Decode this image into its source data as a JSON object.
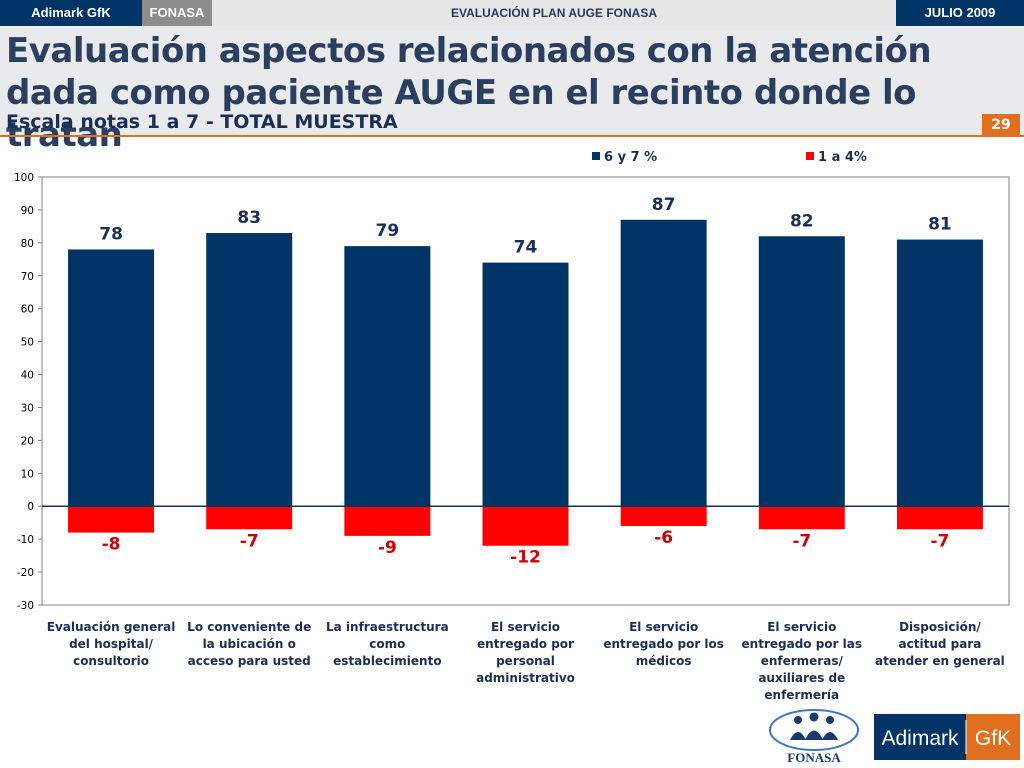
{
  "topbar": {
    "brand": "Adimark GfK",
    "fonasa": "FONASA",
    "title": "EVALUACIÓN PLAN AUGE FONASA",
    "date": "JULIO 2009"
  },
  "header": {
    "title": "Evaluación aspectos relacionados con la atención dada como paciente AUGE en el recinto donde lo tratan",
    "subtitle": "Escala notas 1 a 7 - TOTAL MUESTRA",
    "page_number": "29"
  },
  "colors": {
    "positive": "#003366",
    "negative": "#ff0000",
    "accent": "#e07020",
    "label_positive": "#1a2f55",
    "label_negative": "#cc0000"
  },
  "chart_data": {
    "type": "bar",
    "title": "",
    "xlabel": "",
    "ylabel": "",
    "ylim": [
      -30,
      100
    ],
    "yticks": [
      -30,
      -20,
      -10,
      0,
      10,
      20,
      30,
      40,
      50,
      60,
      70,
      80,
      90,
      100
    ],
    "legend_position": "top",
    "categories": [
      [
        "Evaluación general",
        "del hospital/",
        "consultorio"
      ],
      [
        "Lo conveniente de",
        "la ubicación o",
        "acceso para usted"
      ],
      [
        "La infraestructura",
        "como",
        "establecimiento"
      ],
      [
        "El servicio",
        "entregado por",
        "personal",
        "administrativo"
      ],
      [
        "El servicio",
        "entregado por los",
        "médicos"
      ],
      [
        "El servicio",
        "entregado por las",
        "enfermeras/",
        "auxiliares de",
        "enfermería"
      ],
      [
        "Disposición/",
        "actitud para",
        "atender en general"
      ]
    ],
    "series": [
      {
        "name": "6 y 7 %",
        "values": [
          78,
          83,
          79,
          74,
          87,
          82,
          81
        ],
        "labels": [
          "78",
          "83",
          "79",
          "74",
          "87",
          "82",
          "81"
        ]
      },
      {
        "name": "1 a 4%",
        "values": [
          -8,
          -7,
          -9,
          -12,
          -6,
          -7,
          -7
        ],
        "labels": [
          "-8",
          "-7",
          "-9",
          "-12",
          "-6",
          "-7",
          "-7"
        ]
      }
    ]
  },
  "logos": {
    "fonasa": "FONASA",
    "adimark": "Adimark",
    "gfk": "GfK"
  }
}
